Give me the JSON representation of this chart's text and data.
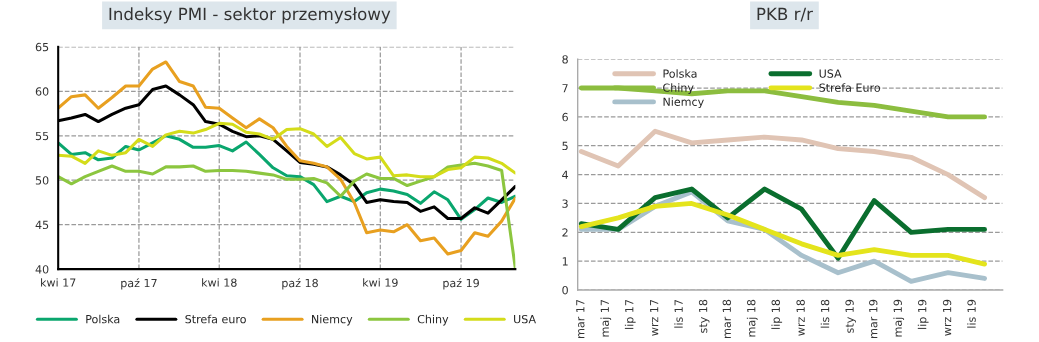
{
  "chart_data": [
    {
      "type": "line",
      "title": "Indeksy PMI - sektor przemysłowy",
      "x": [
        "2017-04",
        "2017-05",
        "2017-06",
        "2017-07",
        "2017-08",
        "2017-09",
        "2017-10",
        "2017-11",
        "2017-12",
        "2018-01",
        "2018-02",
        "2018-03",
        "2018-04",
        "2018-05",
        "2018-06",
        "2018-07",
        "2018-08",
        "2018-09",
        "2018-10",
        "2018-11",
        "2018-12",
        "2019-01",
        "2019-02",
        "2019-03",
        "2019-04",
        "2019-05",
        "2019-06",
        "2019-07",
        "2019-08",
        "2019-09",
        "2019-10",
        "2019-11",
        "2019-12",
        "2020-01",
        "2020-02"
      ],
      "series": [
        {
          "name": "Polska",
          "color": "#0aa66e",
          "values": [
            54.2,
            52.9,
            53.1,
            52.3,
            52.5,
            53.8,
            53.4,
            54.2,
            55.0,
            54.6,
            53.7,
            53.7,
            53.9,
            53.3,
            54.3,
            52.9,
            51.4,
            50.5,
            50.4,
            49.5,
            47.6,
            48.2,
            47.6,
            48.6,
            49.0,
            48.8,
            48.4,
            47.4,
            48.7,
            47.8,
            45.6,
            46.7,
            48.0,
            47.5,
            48.2
          ]
        },
        {
          "name": "Strefa euro",
          "color": "#000000",
          "values": [
            56.7,
            57.0,
            57.4,
            56.6,
            57.4,
            58.1,
            58.5,
            60.2,
            60.6,
            59.6,
            58.5,
            56.6,
            56.3,
            55.5,
            54.9,
            55.0,
            54.6,
            53.3,
            52.0,
            51.8,
            51.5,
            50.6,
            49.5,
            47.5,
            47.8,
            47.6,
            47.5,
            46.5,
            47.0,
            45.7,
            45.7,
            46.9,
            46.3,
            47.8,
            49.3
          ]
        },
        {
          "name": "Niemcy",
          "color": "#e8a020",
          "values": [
            58.1,
            59.4,
            59.6,
            58.1,
            59.3,
            60.6,
            60.6,
            62.5,
            63.3,
            61.1,
            60.6,
            58.2,
            58.1,
            57.0,
            55.9,
            56.9,
            55.9,
            53.8,
            52.2,
            51.9,
            51.5,
            50.1,
            47.5,
            44.1,
            44.4,
            44.2,
            45.0,
            43.2,
            43.5,
            41.7,
            42.1,
            44.1,
            43.7,
            45.4,
            48.0
          ]
        },
        {
          "name": "Chiny",
          "color": "#8cc63f",
          "values": [
            50.4,
            49.6,
            50.4,
            51.0,
            51.6,
            51.0,
            51.0,
            50.7,
            51.5,
            51.5,
            51.6,
            51.0,
            51.1,
            51.1,
            51.0,
            50.8,
            50.6,
            50.1,
            50.1,
            50.2,
            49.7,
            48.2,
            49.9,
            50.7,
            50.2,
            50.2,
            49.4,
            49.9,
            50.4,
            51.5,
            51.7,
            51.9,
            51.6,
            51.1,
            40.1
          ]
        },
        {
          "name": "USA",
          "color": "#d4dc1a",
          "values": [
            52.8,
            52.7,
            51.9,
            53.3,
            52.8,
            53.1,
            54.6,
            53.8,
            55.1,
            55.5,
            55.3,
            55.7,
            56.4,
            56.3,
            55.4,
            55.2,
            54.6,
            55.7,
            55.8,
            55.2,
            53.8,
            54.8,
            53.0,
            52.4,
            52.6,
            50.5,
            50.6,
            50.4,
            50.4,
            51.2,
            51.4,
            52.6,
            52.5,
            51.9,
            50.8
          ]
        }
      ],
      "xlim": [
        "2017-04",
        "2020-02"
      ],
      "xticks": [
        {
          "value": "2017-04",
          "label": "kwi 17"
        },
        {
          "value": "2017-10",
          "label": "paź 17"
        },
        {
          "value": "2018-04",
          "label": "kwi 18"
        },
        {
          "value": "2018-10",
          "label": "paź 18"
        },
        {
          "value": "2019-04",
          "label": "kwi 19"
        },
        {
          "value": "2019-10",
          "label": "paź 19"
        }
      ],
      "ylim": [
        40,
        65
      ],
      "yticks": [
        40,
        45,
        50,
        55,
        60,
        65
      ],
      "grid": true,
      "legend": "bottom",
      "line_style": "solid",
      "marker": "none"
    },
    {
      "type": "line",
      "title": "PKB r/r",
      "x": [
        "2017-03",
        "2017-06",
        "2017-09",
        "2017-12",
        "2018-03",
        "2018-06",
        "2018-09",
        "2018-12",
        "2019-03",
        "2019-06",
        "2019-09",
        "2019-12"
      ],
      "series": [
        {
          "name": "Polska",
          "color": "#e0c4b4",
          "values": [
            4.8,
            4.3,
            5.5,
            5.1,
            5.2,
            5.3,
            5.2,
            4.9,
            4.8,
            4.6,
            4.0,
            3.2
          ]
        },
        {
          "name": "Chiny",
          "color": "#8cbd3f",
          "values": [
            7.0,
            7.0,
            6.9,
            6.8,
            6.9,
            6.9,
            6.7,
            6.5,
            6.4,
            6.2,
            6.0,
            6.0
          ]
        },
        {
          "name": "Niemcy",
          "color": "#a8c0cc",
          "values": [
            2.1,
            2.1,
            2.9,
            3.4,
            2.4,
            2.1,
            1.2,
            0.6,
            1.0,
            0.3,
            0.6,
            0.4
          ]
        },
        {
          "name": "USA",
          "color": "#0a6e2e",
          "values": [
            2.3,
            2.1,
            3.2,
            3.5,
            2.5,
            3.5,
            2.8,
            1.1,
            3.1,
            2.0,
            2.1,
            2.1
          ]
        },
        {
          "name": "Strefa Euro",
          "color": "#e4e41c",
          "values": [
            2.2,
            2.5,
            2.9,
            3.0,
            2.6,
            2.1,
            1.6,
            1.2,
            1.4,
            1.2,
            1.2,
            0.9
          ]
        }
      ],
      "xlim": [
        "2017-02-20",
        "2020-01-15"
      ],
      "xticks": [
        {
          "value": "2017-03",
          "label": "mar 17"
        },
        {
          "value": "2017-05",
          "label": "maj 17"
        },
        {
          "value": "2017-07",
          "label": "lip 17"
        },
        {
          "value": "2017-09",
          "label": "wrz 17"
        },
        {
          "value": "2017-11",
          "label": "lis 17"
        },
        {
          "value": "2018-01",
          "label": "sty 18"
        },
        {
          "value": "2018-03",
          "label": "mar 18"
        },
        {
          "value": "2018-05",
          "label": "maj 18"
        },
        {
          "value": "2018-07",
          "label": "lip 18"
        },
        {
          "value": "2018-09",
          "label": "wrz 18"
        },
        {
          "value": "2018-11",
          "label": "lis 18"
        },
        {
          "value": "2019-01",
          "label": "sty 19"
        },
        {
          "value": "2019-03",
          "label": "mar 19"
        },
        {
          "value": "2019-05",
          "label": "maj 19"
        },
        {
          "value": "2019-07",
          "label": "lip 19"
        },
        {
          "value": "2019-09",
          "label": "wrz 19"
        },
        {
          "value": "2019-11",
          "label": "lis 19"
        }
      ],
      "ylim": [
        0,
        8
      ],
      "yticks": [
        0,
        1,
        2,
        3,
        4,
        5,
        6,
        7,
        8
      ],
      "grid": "y",
      "legend": "top",
      "line_style": "solid",
      "marker": "none"
    }
  ]
}
